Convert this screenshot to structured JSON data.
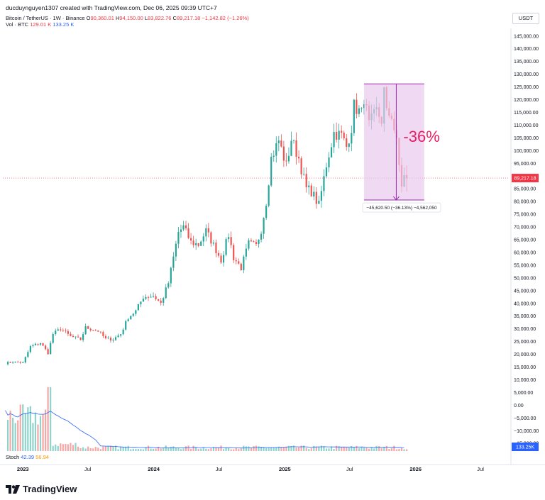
{
  "header": {
    "creator_line": "ducduynguyen1307 created with TradingView.com, Dec 06, 2025 09:39 UTC+7",
    "symbol_title": "Bitcoin / TetherUS · 1W · Binance",
    "ohlc": {
      "open_label": "O",
      "open": "90,360.01",
      "high_label": "H",
      "high": "94,150.00",
      "low_label": "L",
      "low": "83,822.76",
      "close_label": "C",
      "close": "89,217.18",
      "change": "−1,142.82 (−1.26%)"
    },
    "volume_label": "Vol · BTC",
    "volume_value": "129.01 K",
    "volume_ma": "133.25 K"
  },
  "currency_label": "USDT",
  "indicator": {
    "name": "Stoch",
    "k": "42.39",
    "d": "56.94"
  },
  "brand": {
    "name": "TradingView"
  },
  "measure": {
    "percent_label": "-36%",
    "readout": "−45,620.50 (−36.13%) −4,562,050"
  },
  "price_badge": "89,217.18",
  "volume_badge": "133.25K",
  "colors": {
    "up": "#26a69a",
    "down": "#ef5350",
    "up_vol": "#8fd3cb",
    "down_vol": "#f5a7a5",
    "measure_fill": "#e9c9ee",
    "measure_line": "#9c27b0",
    "ma_line": "#2962ff",
    "last_price_line": "#f23645"
  },
  "chart_data": {
    "type": "candlestick",
    "interval": "1W",
    "y_axis": {
      "ticks": [
        "145,000.00",
        "140,000.00",
        "135,000.00",
        "130,000.00",
        "125,000.00",
        "120,000.00",
        "115,000.00",
        "110,000.00",
        "105,000.00",
        "100,000.00",
        "95,000.00",
        "90,000.00",
        "85,000.00",
        "80,000.00",
        "75,000.00",
        "70,000.00",
        "65,000.00",
        "60,000.00",
        "55,000.00",
        "50,000.00",
        "45,000.00",
        "40,000.00",
        "35,000.00",
        "30,000.00",
        "25,000.00",
        "20,000.00",
        "15,000.00",
        "10,000.00",
        "5,000.00",
        "0.00",
        "−5,000.00",
        "−10,000.00",
        "−15,000.00"
      ],
      "range": [
        -18000,
        148000
      ]
    },
    "x_axis": {
      "labels": [
        {
          "label": "2023",
          "date": "2023-01-01",
          "bold": true
        },
        {
          "label": "Jul",
          "date": "2023-07-01",
          "bold": false
        },
        {
          "label": "2024",
          "date": "2024-01-01",
          "bold": true
        },
        {
          "label": "Jul",
          "date": "2024-07-01",
          "bold": false
        },
        {
          "label": "2025",
          "date": "2025-01-01",
          "bold": true
        },
        {
          "label": "Jul",
          "date": "2025-07-01",
          "bold": false
        },
        {
          "label": "2026",
          "date": "2026-01-01",
          "bold": true
        },
        {
          "label": "Jul",
          "date": "2026-07-01",
          "bold": false
        }
      ]
    },
    "price_anchors": [
      [
        "2022-11-13",
        16500
      ],
      [
        "2022-12-04",
        17000
      ],
      [
        "2023-01-01",
        16600
      ],
      [
        "2023-01-22",
        23000
      ],
      [
        "2023-02-19",
        24500
      ],
      [
        "2023-03-12",
        20500
      ],
      [
        "2023-03-26",
        28000
      ],
      [
        "2023-04-16",
        30000
      ],
      [
        "2023-05-14",
        27000
      ],
      [
        "2023-06-11",
        25800
      ],
      [
        "2023-06-25",
        30500
      ],
      [
        "2023-07-30",
        29200
      ],
      [
        "2023-08-20",
        26000
      ],
      [
        "2023-09-10",
        26000
      ],
      [
        "2023-10-01",
        28000
      ],
      [
        "2023-10-22",
        34500
      ],
      [
        "2023-11-12",
        37000
      ],
      [
        "2023-12-03",
        42500
      ],
      [
        "2023-12-31",
        43000
      ],
      [
        "2024-01-21",
        40000
      ],
      [
        "2024-02-11",
        48000
      ],
      [
        "2024-03-10",
        68000
      ],
      [
        "2024-03-24",
        70000
      ],
      [
        "2024-04-14",
        64000
      ],
      [
        "2024-05-05",
        63000
      ],
      [
        "2024-05-26",
        68500
      ],
      [
        "2024-06-23",
        61000
      ],
      [
        "2024-07-07",
        57000
      ],
      [
        "2024-07-28",
        67000
      ],
      [
        "2024-08-11",
        58000
      ],
      [
        "2024-09-01",
        54000
      ],
      [
        "2024-09-22",
        63500
      ],
      [
        "2024-10-13",
        62500
      ],
      [
        "2024-10-27",
        69000
      ],
      [
        "2024-11-10",
        80000
      ],
      [
        "2024-11-24",
        97000
      ],
      [
        "2024-12-15",
        104000
      ],
      [
        "2025-01-05",
        94000
      ],
      [
        "2025-01-19",
        104500
      ],
      [
        "2025-02-09",
        97000
      ],
      [
        "2025-03-02",
        85000
      ],
      [
        "2025-03-16",
        84000
      ],
      [
        "2025-04-06",
        78500
      ],
      [
        "2025-04-27",
        94500
      ],
      [
        "2025-05-18",
        107000
      ],
      [
        "2025-06-08",
        106000
      ],
      [
        "2025-06-22",
        101500
      ],
      [
        "2025-07-06",
        109000
      ],
      [
        "2025-07-13",
        117500
      ],
      [
        "2025-08-03",
        114500
      ],
      [
        "2025-08-10",
        121000
      ],
      [
        "2025-08-24",
        110000
      ],
      [
        "2025-09-14",
        115500
      ],
      [
        "2025-09-28",
        112000
      ],
      [
        "2025-10-05",
        123500
      ],
      [
        "2025-10-12",
        114500
      ],
      [
        "2025-10-26",
        114000
      ],
      [
        "2025-11-09",
        103000
      ],
      [
        "2025-11-16",
        94000
      ],
      [
        "2025-11-23",
        86500
      ],
      [
        "2025-11-30",
        90360
      ]
    ],
    "last_candle": {
      "open": 90360.01,
      "high": 94150.0,
      "low": 83822.76,
      "close": 89217.18
    },
    "measure_box": {
      "start": "2025-08-10",
      "end": "2026-01-25",
      "top": 126200,
      "bottom": 80580,
      "change": -45620.5,
      "change_pct": -36.13
    },
    "volume_ma_value": 133.25
  }
}
